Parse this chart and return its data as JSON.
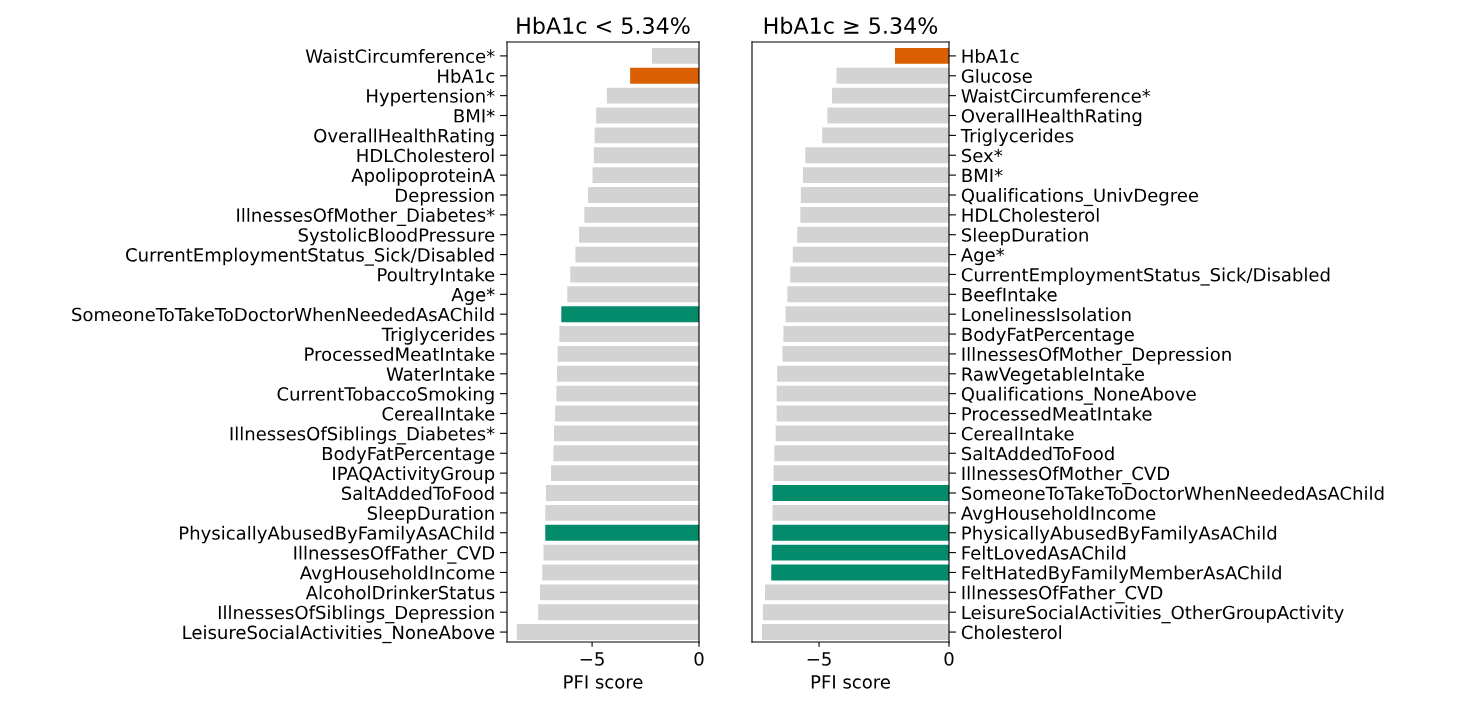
{
  "chart_data": [
    {
      "type": "bar",
      "orientation": "horizontal",
      "title": "HbA1c < 5.34%",
      "xlabel": "PFI score",
      "categories": [
        "WaistCircumference*",
        "HbA1c",
        "Hypertension*",
        "BMI*",
        "OverallHealthRating",
        "HDLCholesterol",
        "ApolipoproteinA",
        "Depression",
        "IllnessesOfMother_Diabetes*",
        "SystolicBloodPressure",
        "CurrentEmploymentStatus_Sick/Disabled",
        "PoultryIntake",
        "Age*",
        "SomeoneToTakeToDoctorWhenNeededAsAChild",
        "Triglycerides",
        "ProcessedMeatIntake",
        "WaterIntake",
        "CurrentTobaccoSmoking",
        "CerealIntake",
        "IllnessesOfSiblings_Diabetes*",
        "BodyFatPercentage",
        "IPAQActivityGroup",
        "SaltAddedToFood",
        "SleepDuration",
        "PhysicallyAbusedByFamilyAsAChild",
        "IllnessesOfFather_CVD",
        "AvgHouseholdIncome",
        "AlcoholDrinkerStatus",
        "IllnessesOfSiblings_Depression",
        "LeisureSocialActivities_NoneAbove"
      ],
      "values": [
        -2.2,
        -3.22,
        -4.31,
        -4.81,
        -4.88,
        -4.92,
        -4.98,
        -5.19,
        -5.36,
        -5.61,
        -5.78,
        -6.02,
        -6.16,
        -6.44,
        -6.53,
        -6.61,
        -6.64,
        -6.67,
        -6.73,
        -6.78,
        -6.81,
        -6.92,
        -7.16,
        -7.19,
        -7.19,
        -7.27,
        -7.33,
        -7.44,
        -7.52,
        -8.52
      ],
      "colors": [
        "#d3d3d3",
        "#d95f02",
        "#d3d3d3",
        "#d3d3d3",
        "#d3d3d3",
        "#d3d3d3",
        "#d3d3d3",
        "#d3d3d3",
        "#d3d3d3",
        "#d3d3d3",
        "#d3d3d3",
        "#d3d3d3",
        "#d3d3d3",
        "#038c6c",
        "#d3d3d3",
        "#d3d3d3",
        "#d3d3d3",
        "#d3d3d3",
        "#d3d3d3",
        "#d3d3d3",
        "#d3d3d3",
        "#d3d3d3",
        "#d3d3d3",
        "#d3d3d3",
        "#038c6c",
        "#d3d3d3",
        "#d3d3d3",
        "#d3d3d3",
        "#d3d3d3",
        "#d3d3d3"
      ],
      "xlim": [
        -8.98,
        0
      ],
      "xticks": [
        {
          "value": -5,
          "label": "−5"
        },
        0
      ],
      "grid": false
    },
    {
      "type": "bar",
      "orientation": "horizontal",
      "title": "HbA1c ≥ 5.34%",
      "xlabel": "PFI score",
      "categories": [
        "HbA1c",
        "Glucose",
        "WaistCircumference*",
        "OverallHealthRating",
        "Triglycerides",
        "Sex*",
        "BMI*",
        "Qualifications_UnivDegree",
        "HDLCholesterol",
        "SleepDuration",
        "Age*",
        "CurrentEmploymentStatus_Sick/Disabled",
        "BeefIntake",
        "LonelinessIsolation",
        "BodyFatPercentage",
        "IllnessesOfMother_Depression",
        "RawVegetableIntake",
        "Qualifications_NoneAbove",
        "ProcessedMeatIntake",
        "CerealIntake",
        "SaltAddedToFood",
        "IllnessesOfMother_CVD",
        "SomeoneToTakeToDoctorWhenNeededAsAChild",
        "AvgHouseholdIncome",
        "PhysicallyAbusedByFamilyAsAChild",
        "FeltLovedAsAChild",
        "FeltHatedByFamilyMemberAsAChild",
        "IllnessesOfFather_CVD",
        "LeisureSocialActivities_OtherGroupActivity",
        "Cholesterol"
      ],
      "values": [
        -2.08,
        -4.33,
        -4.5,
        -4.68,
        -4.88,
        -5.53,
        -5.62,
        -5.7,
        -5.72,
        -5.84,
        -6.01,
        -6.11,
        -6.22,
        -6.29,
        -6.37,
        -6.41,
        -6.61,
        -6.63,
        -6.63,
        -6.67,
        -6.72,
        -6.75,
        -6.79,
        -6.79,
        -6.79,
        -6.82,
        -6.84,
        -7.08,
        -7.16,
        -7.2
      ],
      "colors": [
        "#d95f02",
        "#d3d3d3",
        "#d3d3d3",
        "#d3d3d3",
        "#d3d3d3",
        "#d3d3d3",
        "#d3d3d3",
        "#d3d3d3",
        "#d3d3d3",
        "#d3d3d3",
        "#d3d3d3",
        "#d3d3d3",
        "#d3d3d3",
        "#d3d3d3",
        "#d3d3d3",
        "#d3d3d3",
        "#d3d3d3",
        "#d3d3d3",
        "#d3d3d3",
        "#d3d3d3",
        "#d3d3d3",
        "#d3d3d3",
        "#038c6c",
        "#d3d3d3",
        "#038c6c",
        "#038c6c",
        "#038c6c",
        "#d3d3d3",
        "#d3d3d3",
        "#d3d3d3"
      ],
      "xlim": [
        -7.58,
        0
      ],
      "xticks": [
        {
          "value": -5,
          "label": "−5"
        },
        0
      ],
      "grid": false
    }
  ]
}
